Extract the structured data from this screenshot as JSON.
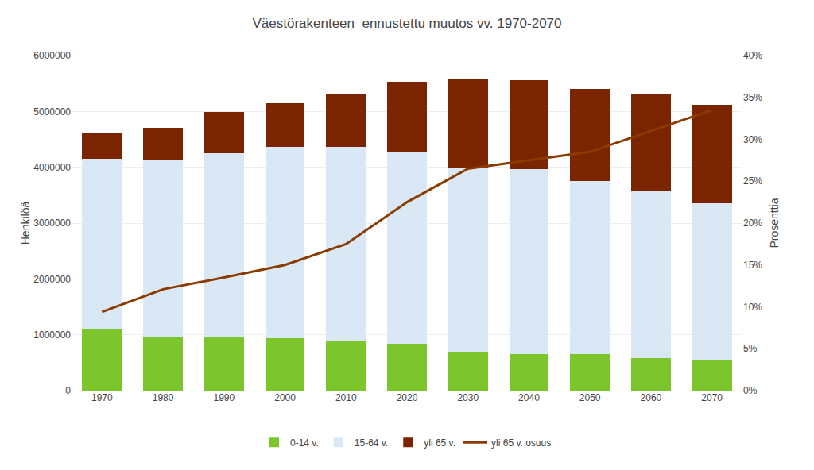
{
  "chart_data": {
    "type": "bar",
    "title": "Väestörakenteen  ennustettu muutos vv. 1970-2070",
    "categories": [
      "1970",
      "1980",
      "1990",
      "2000",
      "2010",
      "2020",
      "2030",
      "2040",
      "2050",
      "2060",
      "2070"
    ],
    "series": [
      {
        "name": "0-14 v.",
        "color": "#7DC52C",
        "values": [
          1100000,
          960000,
          960000,
          940000,
          880000,
          840000,
          700000,
          660000,
          650000,
          590000,
          560000
        ]
      },
      {
        "name": "15-64 v.",
        "color": "#DAE8F5",
        "values": [
          3050000,
          3170000,
          3290000,
          3430000,
          3490000,
          3430000,
          3280000,
          3310000,
          3100000,
          3000000,
          2800000
        ]
      },
      {
        "name": "yli 65 v.",
        "color": "#7B2500",
        "values": [
          450000,
          580000,
          740000,
          780000,
          940000,
          1260000,
          1590000,
          1590000,
          1650000,
          1730000,
          1760000
        ]
      },
      {
        "name": "yli 65 v. osuus",
        "type": "line",
        "axis": "y2",
        "color": "#8B3A00",
        "values": [
          0.094,
          0.121,
          0.135,
          0.15,
          0.175,
          0.225,
          0.265,
          0.275,
          0.285,
          0.31,
          0.335
        ]
      }
    ],
    "stacked": true,
    "ylabel": "Henkilöä",
    "y2label": "Prosenttia",
    "ylim": [
      0,
      6000000
    ],
    "yticks": [
      0,
      1000000,
      2000000,
      3000000,
      4000000,
      5000000,
      6000000
    ],
    "y2lim": [
      0,
      0.4
    ],
    "y2ticks": [
      {
        "value": 0.0,
        "label": "0%"
      },
      {
        "value": 0.05,
        "label": "5%"
      },
      {
        "value": 0.1,
        "label": "10%"
      },
      {
        "value": 0.15,
        "label": "15%"
      },
      {
        "value": 0.2,
        "label": "20%"
      },
      {
        "value": 0.25,
        "label": "25%"
      },
      {
        "value": 0.3,
        "label": "30%"
      },
      {
        "value": 0.35,
        "label": "35%"
      },
      {
        "value": 0.4,
        "label": "40%"
      }
    ],
    "grid": true,
    "legend": "bottom"
  }
}
